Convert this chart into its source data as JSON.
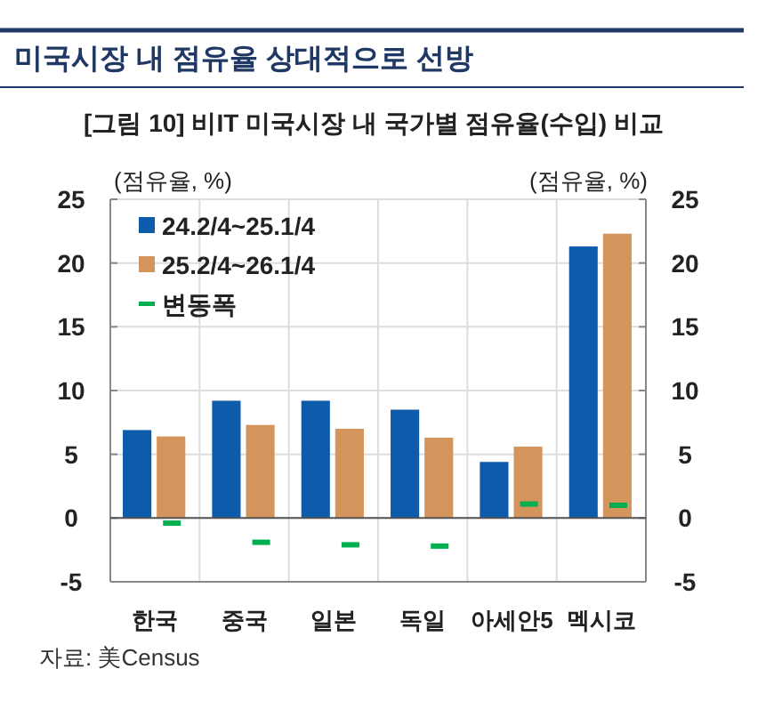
{
  "chart_data": {
    "type": "bar",
    "title": "미국시장 내 점유율 상대적으로 선방",
    "subtitle": "[그림 10] 비IT 미국시장 내 국가별 점유율(수입) 비교",
    "ylabel": "(점유율, %)",
    "y2label": "(점유율, %)",
    "annotations": [
      "자료: 美Census"
    ],
    "categories": [
      "한국",
      "중국",
      "일본",
      "독일",
      "아세안5",
      "멕시코"
    ],
    "series": [
      {
        "name": "24.2/4~25.1/4",
        "color": "#0d5cab",
        "values": [
          6.9,
          9.2,
          9.2,
          8.5,
          4.4,
          21.3
        ]
      },
      {
        "name": "25.2/4~26.1/4",
        "color": "#d3955b",
        "values": [
          6.4,
          7.3,
          7.0,
          6.3,
          5.6,
          22.3
        ]
      },
      {
        "name": "변동폭",
        "type": "scatter",
        "color": "#00b050",
        "values": [
          -0.4,
          -1.9,
          -2.1,
          -2.2,
          1.1,
          1.0
        ]
      }
    ],
    "ylim": [
      -5,
      25
    ],
    "yticks": [
      -5,
      0,
      5,
      10,
      15,
      20,
      25
    ],
    "y2lim": [
      -5,
      25
    ],
    "y2ticks": [
      -5,
      0,
      5,
      10,
      15,
      20,
      25
    ],
    "grid": true,
    "legend": "top left"
  }
}
